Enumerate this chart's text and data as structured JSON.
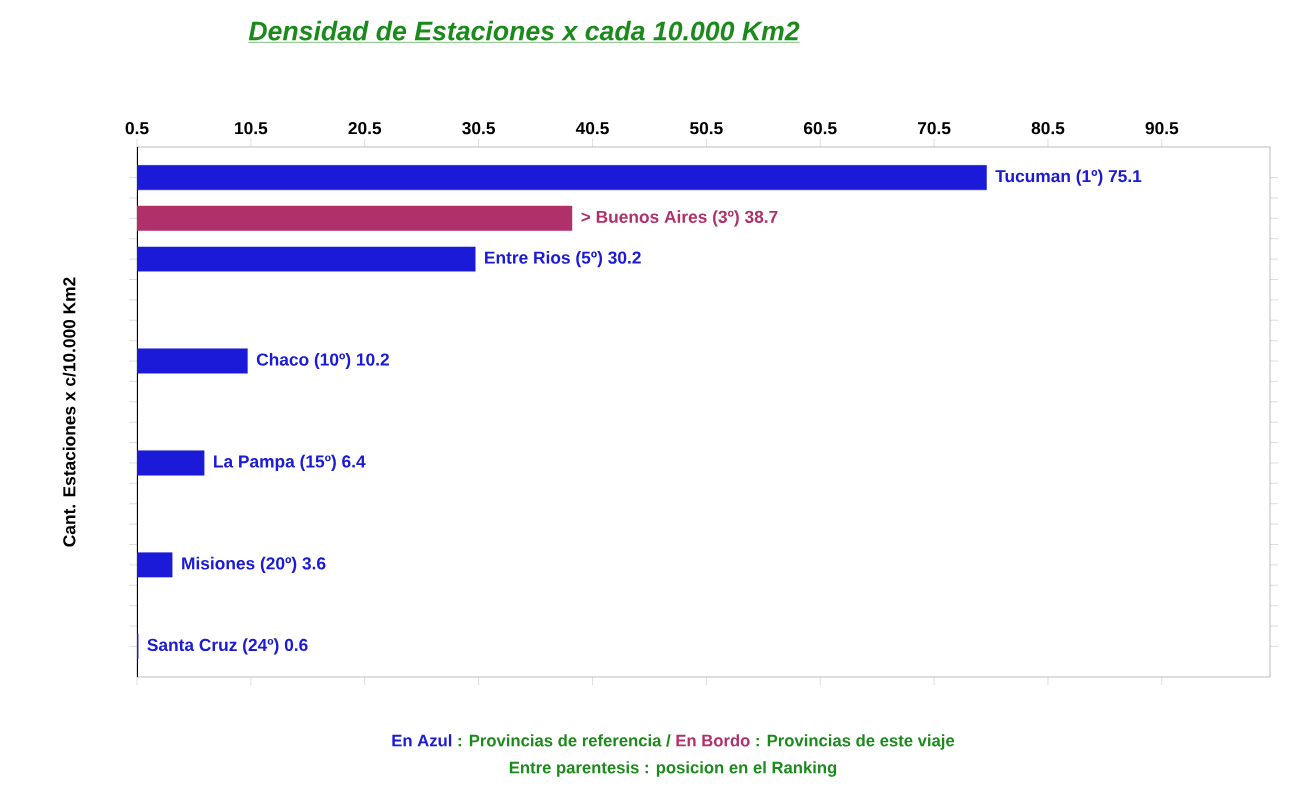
{
  "chart_data": {
    "type": "bar",
    "orientation": "horizontal",
    "title": "Densidad de Estaciones x cada 10.000 Km2",
    "ylabel": "Cant. Estaciones x c/10.000 Km2",
    "categories": [
      null,
      null,
      null,
      null,
      null,
      null,
      null,
      null,
      null,
      null,
      null,
      null,
      null,
      null,
      null,
      null,
      null,
      null,
      null,
      null,
      null,
      null,
      null,
      null,
      null,
      null
    ],
    "values": [
      null,
      75.1,
      null,
      38.7,
      null,
      30.2,
      null,
      null,
      null,
      null,
      10.2,
      null,
      null,
      null,
      null,
      6.4,
      null,
      null,
      null,
      null,
      3.6,
      null,
      null,
      null,
      0.6,
      null
    ],
    "colors": [
      null,
      "#1a1ad8",
      null,
      "#b0306a",
      null,
      "#1a1ad8",
      null,
      null,
      null,
      null,
      "#1a1ad8",
      null,
      null,
      null,
      null,
      "#1a1ad8",
      null,
      null,
      null,
      null,
      "#1a1ad8",
      null,
      null,
      null,
      "#1a1ad8",
      null
    ],
    "value_labels": [
      null,
      "Tucuman (1º) 75.1",
      null,
      "> Buenos Aires (3º) 38.7",
      null,
      "Entre Rios (5º) 30.2",
      null,
      null,
      null,
      null,
      "Chaco (10º) 10.2",
      null,
      null,
      null,
      null,
      "La Pampa (15º) 6.4",
      null,
      null,
      null,
      null,
      "Misiones (20º) 3.6",
      null,
      null,
      null,
      "Santa Cruz (24º) 0.6",
      null
    ],
    "xlim": [
      0.5,
      100
    ],
    "xticks": [
      0.5,
      10.5,
      20.5,
      30.5,
      40.5,
      50.5,
      60.5,
      70.5,
      80.5,
      90.5
    ],
    "tick_labels": "x",
    "grid": false,
    "annotations": [
      "En Azul",
      ": Provincias de referencia /",
      "En Bordo",
      ": Provincias de este viaje",
      "Entre parentesis : posicion en el Ranking"
    ]
  }
}
